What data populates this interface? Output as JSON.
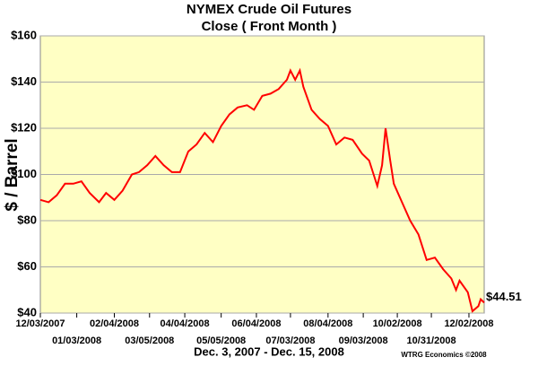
{
  "chart_data": {
    "type": "line",
    "title": "NYMEX Crude Oil Futures",
    "subtitle": "Close ( Front Month )",
    "y_label": "$ / Barrel",
    "x_label": "Dec. 3, 2007 - Dec. 15, 2008",
    "credit": "WTRG Economics  ©2008",
    "color": "#ff0000",
    "x": [
      "12/03/2007",
      "12/10/2007",
      "12/17/2007",
      "12/24/2007",
      "12/31/2007",
      "01/07/2008",
      "01/14/2008",
      "01/22/2008",
      "01/28/2008",
      "02/04/2008",
      "02/11/2008",
      "02/19/2008",
      "02/25/2008",
      "03/03/2008",
      "03/10/2008",
      "03/17/2008",
      "03/24/2008",
      "03/31/2008",
      "04/07/2008",
      "04/14/2008",
      "04/21/2008",
      "04/28/2008",
      "05/05/2008",
      "05/12/2008",
      "05/19/2008",
      "05/27/2008",
      "06/02/2008",
      "06/09/2008",
      "06/16/2008",
      "06/23/2008",
      "06/30/2008",
      "07/03/2008",
      "07/07/2008",
      "07/11/2008",
      "07/14/2008",
      "07/21/2008",
      "07/28/2008",
      "08/04/2008",
      "08/11/2008",
      "08/18/2008",
      "08/25/2008",
      "09/02/2008",
      "09/08/2008",
      "09/15/2008",
      "09/19/2008",
      "09/22/2008",
      "09/26/2008",
      "09/29/2008",
      "10/06/2008",
      "10/13/2008",
      "10/20/2008",
      "10/27/2008",
      "11/03/2008",
      "11/10/2008",
      "11/17/2008",
      "11/21/2008",
      "11/24/2008",
      "12/01/2008",
      "12/05/2008",
      "12/10/2008",
      "12/12/2008",
      "12/15/2008"
    ],
    "values": [
      89,
      88,
      91,
      96,
      96,
      97,
      92,
      88,
      92,
      89,
      93,
      100,
      101,
      104,
      108,
      104,
      101,
      101,
      110,
      113,
      118,
      114,
      121,
      126,
      129,
      130,
      128,
      134,
      135,
      137,
      141,
      145,
      141,
      145,
      138,
      128,
      124,
      121,
      113,
      116,
      115,
      109,
      106,
      95,
      104,
      120,
      106,
      96,
      88,
      80,
      74,
      63,
      64,
      59,
      55,
      50,
      54,
      49,
      40.8,
      43,
      46,
      44.51
    ],
    "value_labels": [
      null,
      null,
      null,
      null,
      null,
      null,
      null,
      null,
      null,
      null,
      null,
      null,
      null,
      null,
      null,
      null,
      null,
      null,
      null,
      null,
      null,
      null,
      null,
      null,
      null,
      null,
      null,
      null,
      null,
      null,
      null,
      null,
      null,
      null,
      null,
      null,
      null,
      null,
      null,
      null,
      null,
      null,
      null,
      null,
      null,
      null,
      null,
      null,
      null,
      null,
      null,
      null,
      null,
      null,
      null,
      null,
      null,
      null,
      null,
      null,
      null,
      "$44.51"
    ],
    "xlim": [
      "12/03/2007",
      "12/15/2008"
    ],
    "xticks": [
      "12/03/2007",
      "01/03/2008",
      "02/04/2008",
      "03/05/2008",
      "04/04/2008",
      "05/05/2008",
      "06/04/2008",
      "07/03/2008",
      "08/04/2008",
      "09/03/2008",
      "10/02/2008",
      "10/31/2008",
      "12/02/2008"
    ],
    "ylim": [
      40,
      160
    ],
    "yticks": [
      {
        "value": 40,
        "label": "$40"
      },
      {
        "value": 60,
        "label": "$60"
      },
      {
        "value": 80,
        "label": "$80"
      },
      {
        "value": 100,
        "label": "$100"
      },
      {
        "value": 120,
        "label": "$120"
      },
      {
        "value": 140,
        "label": "$140"
      },
      {
        "value": 160,
        "label": "$160"
      }
    ],
    "grid": true
  }
}
